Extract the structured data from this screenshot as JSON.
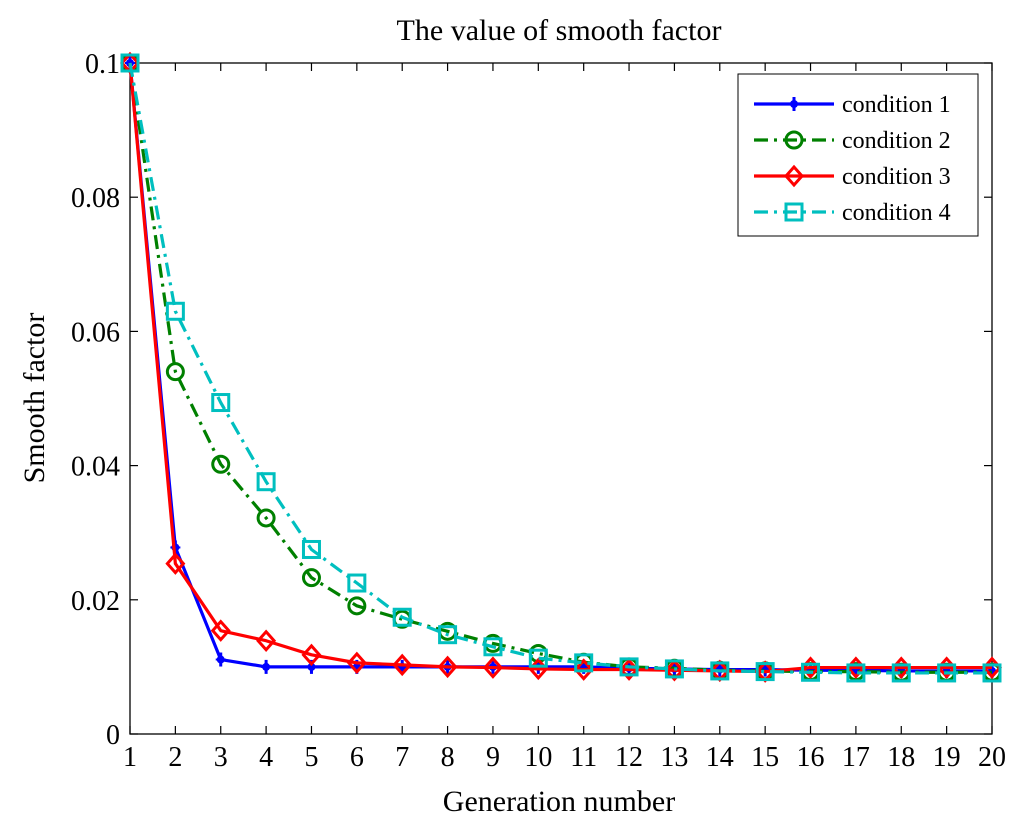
{
  "chart_data": {
    "type": "line",
    "title": "The value of smooth factor",
    "xlabel": "Generation number",
    "ylabel": "Smooth factor",
    "xlim": [
      1,
      20
    ],
    "ylim": [
      0,
      0.1
    ],
    "x": [
      1,
      2,
      3,
      4,
      5,
      6,
      7,
      8,
      9,
      10,
      11,
      12,
      13,
      14,
      15,
      16,
      17,
      18,
      19,
      20
    ],
    "xticks": [
      "1",
      "2",
      "3",
      "4",
      "5",
      "6",
      "7",
      "8",
      "9",
      "10",
      "11",
      "12",
      "13",
      "14",
      "15",
      "16",
      "17",
      "18",
      "19",
      "20"
    ],
    "yticks": [
      {
        "value": 0,
        "label": "0"
      },
      {
        "value": 0.02,
        "label": "0.02"
      },
      {
        "value": 0.04,
        "label": "0.04"
      },
      {
        "value": 0.06,
        "label": "0.06"
      },
      {
        "value": 0.08,
        "label": "0.08"
      },
      {
        "value": 0.1,
        "label": "0.1"
      }
    ],
    "grid": false,
    "legend_position": "top-right",
    "series": [
      {
        "name": "condition 1",
        "color": "#0000ff",
        "line_style": "solid",
        "marker": "plus-dot",
        "values": [
          0.1,
          0.0278,
          0.0111,
          0.01,
          0.01,
          0.01,
          0.01,
          0.01,
          0.01,
          0.01,
          0.01,
          0.0098,
          0.0097,
          0.0096,
          0.0096,
          0.0095,
          0.0095,
          0.0094,
          0.0094,
          0.0094
        ]
      },
      {
        "name": "condition 2",
        "color": "#008000",
        "line_style": "dash-dot",
        "marker": "circle",
        "values": [
          0.1,
          0.054,
          0.0402,
          0.0322,
          0.0233,
          0.0191,
          0.0171,
          0.0153,
          0.0135,
          0.012,
          0.0107,
          0.01,
          0.0098,
          0.0095,
          0.0094,
          0.0093,
          0.0093,
          0.0092,
          0.0092,
          0.0092
        ]
      },
      {
        "name": "condition 3",
        "color": "#ff0000",
        "line_style": "solid",
        "marker": "diamond",
        "values": [
          0.1,
          0.0254,
          0.0154,
          0.0139,
          0.0118,
          0.0106,
          0.0103,
          0.01,
          0.0099,
          0.0097,
          0.0096,
          0.0096,
          0.0095,
          0.0094,
          0.0093,
          0.0099,
          0.0099,
          0.0099,
          0.0099,
          0.0099
        ]
      },
      {
        "name": "condition 4",
        "color": "#00bfbf",
        "line_style": "dash-dot",
        "marker": "square",
        "values": [
          0.1,
          0.063,
          0.0494,
          0.0376,
          0.0275,
          0.0225,
          0.0174,
          0.0148,
          0.013,
          0.0113,
          0.0106,
          0.01,
          0.0097,
          0.0094,
          0.0093,
          0.0092,
          0.0091,
          0.0091,
          0.0091,
          0.0091
        ]
      }
    ]
  }
}
